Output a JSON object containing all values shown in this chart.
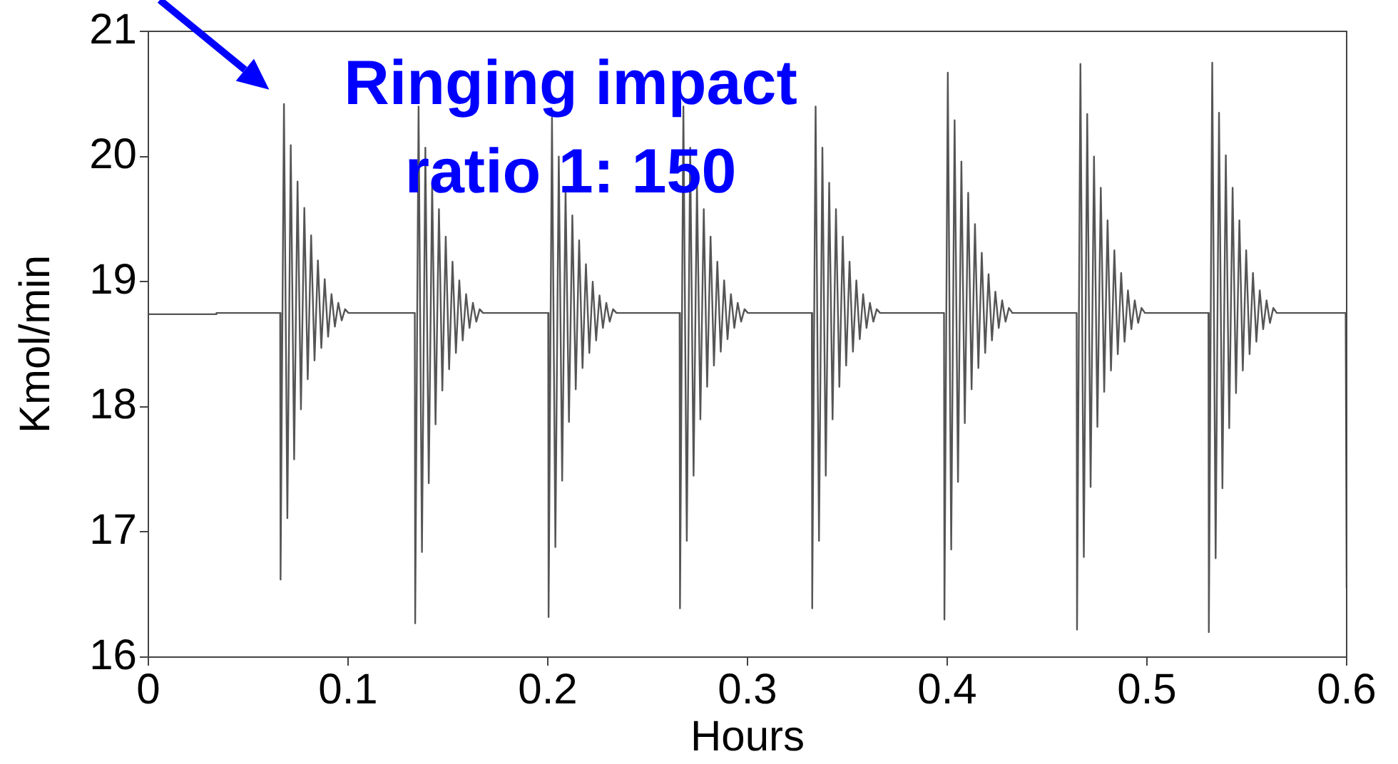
{
  "chart_data": {
    "type": "line",
    "xlabel": "Hours",
    "ylabel": "Kmol/min",
    "xlim": [
      0,
      0.6
    ],
    "xticks": [
      0,
      0.1,
      0.2,
      0.3,
      0.4,
      0.5,
      0.6
    ],
    "ylim": [
      16,
      21
    ],
    "yticks": [
      16,
      17,
      18,
      19,
      20,
      21
    ],
    "grid": false,
    "legend": false,
    "marker": "none",
    "line_style": "solid",
    "annotations": [
      {
        "text": "Ringing impact ratio 1: 150",
        "x": 0.0662,
        "y": 20.42
      }
    ],
    "series": [
      {
        "color": "#555555",
        "x": [
          0,
          0.034,
          0.0341,
          0.066,
          0.0662,
          0.0679,
          0.0696,
          0.0713,
          0.073,
          0.0747,
          0.0764,
          0.0781,
          0.0798,
          0.0815,
          0.0832,
          0.0849,
          0.0866,
          0.0883,
          0.09,
          0.0917,
          0.0934,
          0.0951,
          0.0968,
          0.0985,
          0.1002,
          0.1334,
          0.1336,
          0.1353,
          0.137,
          0.1387,
          0.1404,
          0.1421,
          0.1438,
          0.1455,
          0.1472,
          0.1489,
          0.1506,
          0.1523,
          0.154,
          0.1557,
          0.1574,
          0.1591,
          0.1608,
          0.1625,
          0.1642,
          0.1659,
          0.1676,
          0.2002,
          0.2004,
          0.2021,
          0.2038,
          0.2055,
          0.2072,
          0.2089,
          0.2106,
          0.2123,
          0.214,
          0.2157,
          0.2174,
          0.2191,
          0.2208,
          0.2225,
          0.2242,
          0.2259,
          0.2276,
          0.2293,
          0.231,
          0.2327,
          0.2344,
          0.266,
          0.2662,
          0.2679,
          0.2696,
          0.2713,
          0.273,
          0.2747,
          0.2764,
          0.2781,
          0.2798,
          0.2815,
          0.2832,
          0.2849,
          0.2866,
          0.2883,
          0.29,
          0.2917,
          0.2934,
          0.2951,
          0.2968,
          0.2985,
          0.3002,
          0.3322,
          0.3324,
          0.3341,
          0.3358,
          0.3375,
          0.3392,
          0.3409,
          0.3426,
          0.3443,
          0.346,
          0.3477,
          0.3494,
          0.3511,
          0.3528,
          0.3545,
          0.3562,
          0.3579,
          0.3596,
          0.3613,
          0.363,
          0.3647,
          0.3664,
          0.3984,
          0.3986,
          0.4003,
          0.402,
          0.4037,
          0.4054,
          0.4071,
          0.4088,
          0.4105,
          0.4122,
          0.4139,
          0.4156,
          0.4173,
          0.419,
          0.4207,
          0.4224,
          0.4241,
          0.4258,
          0.4275,
          0.4292,
          0.4309,
          0.4326,
          0.4648,
          0.465,
          0.4667,
          0.4684,
          0.4701,
          0.4718,
          0.4735,
          0.4752,
          0.4769,
          0.4786,
          0.4803,
          0.482,
          0.4837,
          0.4854,
          0.4871,
          0.4888,
          0.4905,
          0.4922,
          0.4939,
          0.4956,
          0.4973,
          0.499,
          0.5308,
          0.531,
          0.5327,
          0.5344,
          0.5361,
          0.5378,
          0.5395,
          0.5412,
          0.5429,
          0.5446,
          0.5463,
          0.548,
          0.5497,
          0.5514,
          0.5531,
          0.5548,
          0.5565,
          0.5582,
          0.5599,
          0.5616,
          0.5633,
          0.565,
          0.5995,
          0.6
        ],
        "values": [
          18.74,
          18.74,
          18.75,
          18.75,
          16.62,
          20.42,
          17.11,
          20.09,
          17.58,
          19.8,
          17.98,
          19.59,
          18.22,
          19.37,
          18.37,
          19.17,
          18.47,
          19.02,
          18.56,
          18.9,
          18.64,
          18.83,
          18.69,
          18.78,
          18.75,
          18.75,
          16.27,
          20.4,
          16.84,
          20.07,
          17.39,
          19.79,
          17.86,
          19.58,
          18.13,
          19.36,
          18.3,
          19.16,
          18.43,
          19.01,
          18.53,
          18.9,
          18.63,
          18.83,
          18.68,
          18.78,
          18.75,
          18.75,
          16.32,
          20.31,
          16.88,
          20.0,
          17.41,
          19.73,
          17.88,
          19.53,
          18.14,
          19.33,
          18.31,
          19.14,
          18.43,
          19.0,
          18.53,
          18.89,
          18.63,
          18.83,
          18.68,
          18.78,
          18.75,
          18.75,
          16.39,
          20.4,
          16.93,
          20.07,
          17.45,
          19.79,
          17.9,
          19.58,
          18.16,
          19.36,
          18.33,
          19.16,
          18.44,
          19.01,
          18.54,
          18.9,
          18.63,
          18.83,
          18.68,
          18.78,
          18.75,
          18.75,
          16.39,
          20.4,
          16.93,
          20.07,
          17.45,
          19.79,
          17.9,
          19.58,
          18.16,
          19.36,
          18.33,
          19.16,
          18.44,
          19.01,
          18.54,
          18.9,
          18.63,
          18.83,
          18.68,
          18.78,
          18.75,
          18.75,
          16.3,
          20.67,
          16.86,
          20.29,
          17.4,
          19.96,
          17.87,
          19.71,
          18.14,
          19.46,
          18.31,
          19.23,
          18.43,
          19.06,
          18.53,
          18.92,
          18.63,
          18.85,
          18.68,
          18.79,
          18.75,
          18.75,
          16.22,
          20.74,
          16.8,
          20.34,
          17.36,
          20.0,
          17.84,
          19.75,
          18.12,
          19.49,
          18.29,
          19.25,
          18.42,
          19.07,
          18.52,
          18.93,
          18.62,
          18.85,
          18.67,
          18.79,
          18.75,
          18.75,
          16.2,
          20.75,
          16.79,
          20.35,
          17.35,
          20.01,
          17.83,
          19.75,
          18.11,
          19.49,
          18.29,
          19.25,
          18.42,
          19.07,
          18.52,
          18.93,
          18.62,
          18.85,
          18.67,
          18.79,
          18.75,
          18.75,
          16.55
        ]
      }
    ]
  }
}
